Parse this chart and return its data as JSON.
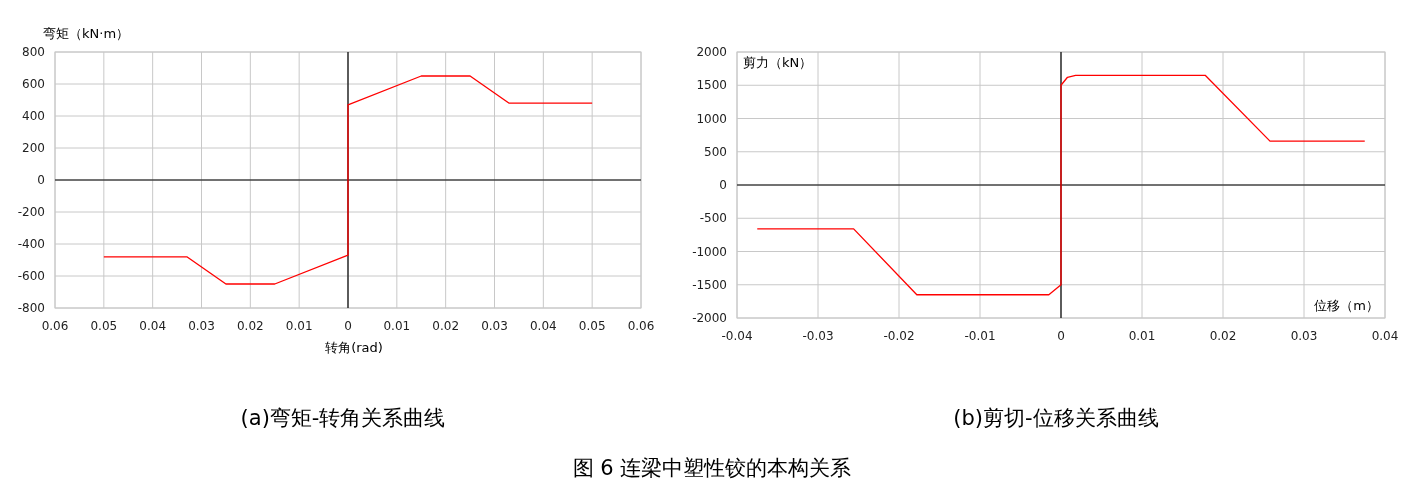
{
  "chart_data": [
    {
      "type": "line",
      "title": "(a)弯矩-转角关系曲线",
      "xlabel": "转角(rad)",
      "ylabel": "弯矩（kN·m）",
      "annotations": [
        "图 6  连梁中塑性铰的本构关系"
      ],
      "grid": true,
      "xlim": [
        -0.06,
        0.06
      ],
      "ylim": [
        -800,
        800
      ],
      "xticks": [
        {
          "value": -0.06,
          "label": "0.06"
        },
        {
          "value": -0.05,
          "label": "0.05"
        },
        {
          "value": -0.04,
          "label": "0.04"
        },
        {
          "value": -0.03,
          "label": "0.03"
        },
        {
          "value": -0.02,
          "label": "0.02"
        },
        {
          "value": -0.01,
          "label": "0.01"
        },
        0,
        0.01,
        0.02,
        0.03,
        0.04,
        0.05,
        0.06
      ],
      "yticks": [
        -800,
        -600,
        -400,
        -200,
        0,
        200,
        400,
        600,
        800
      ],
      "series": [
        {
          "color": "#ff0000",
          "x": [
            -0.05,
            -0.033,
            -0.025,
            -0.015,
            0,
            0,
            0.015,
            0.025,
            0.033,
            0.05
          ],
          "values": [
            -480,
            -480,
            -650,
            -650,
            -470,
            470,
            650,
            650,
            480,
            480
          ]
        }
      ]
    },
    {
      "type": "line",
      "title": "(b)剪切-位移关系曲线",
      "xlabel": "位移（m）",
      "ylabel": "剪力（kN）",
      "grid": true,
      "xlim": [
        -0.04,
        0.04
      ],
      "ylim": [
        -2000,
        2000
      ],
      "xticks": [
        -0.04,
        -0.03,
        -0.02,
        -0.01,
        0,
        0.01,
        0.02,
        0.03,
        0.04
      ],
      "yticks": [
        -2000,
        -1500,
        -1000,
        -500,
        0,
        500,
        1000,
        1500,
        2000
      ],
      "series": [
        {
          "color": "#ff0000",
          "x": [
            -0.0375,
            -0.0256,
            -0.0178,
            -0.0015,
            0,
            0,
            0.0008,
            0.0018,
            0.0178,
            0.0258,
            0.0375
          ],
          "values": [
            -660,
            -660,
            -1650,
            -1650,
            -1500,
            1500,
            1620,
            1650,
            1650,
            660,
            660
          ]
        }
      ]
    }
  ]
}
